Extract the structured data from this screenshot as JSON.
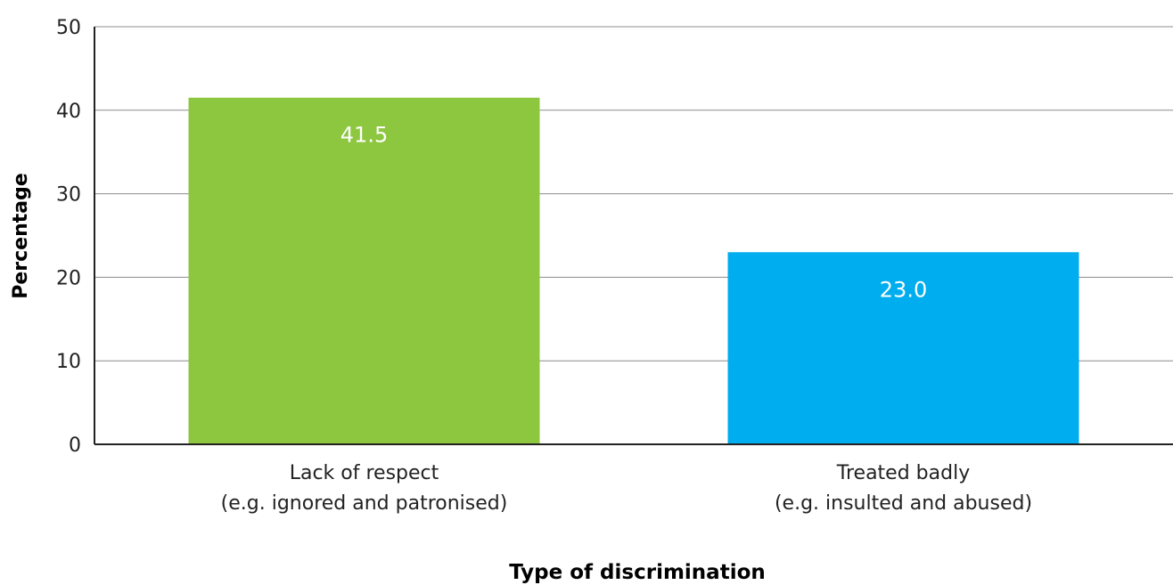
{
  "chart_data": {
    "type": "bar",
    "title": "",
    "xlabel": "Type of discrimination",
    "ylabel": "Percentage",
    "ylim": [
      0,
      50
    ],
    "yticks": [
      0,
      10,
      20,
      30,
      40,
      50
    ],
    "grid": true,
    "categories": [
      {
        "line1": "Lack of respect",
        "line2": "(e.g. ignored and patronised)"
      },
      {
        "line1": "Treated badly",
        "line2": "(e.g. insulted and abused)"
      }
    ],
    "values": [
      41.5,
      23.0
    ],
    "value_labels": [
      "41.5",
      "23.0"
    ],
    "colors": [
      "#8dc63f",
      "#00adee"
    ]
  }
}
